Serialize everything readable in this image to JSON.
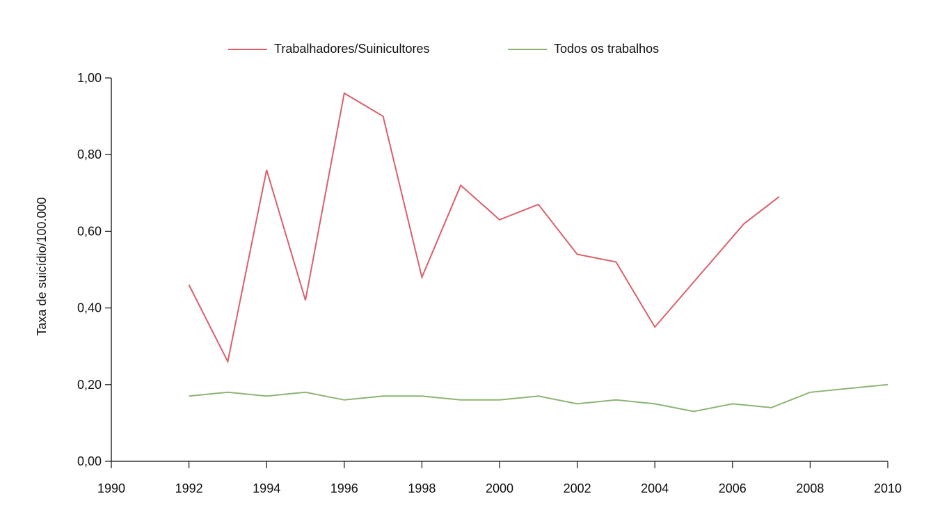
{
  "chart_data": {
    "type": "line",
    "title": "",
    "xlabel": "",
    "ylabel": "Taxa de suicídio/100.000",
    "xlim": [
      1990,
      2010
    ],
    "ylim": [
      0,
      1.0
    ],
    "x_ticks": [
      "1990",
      "1992",
      "1994",
      "1996",
      "1998",
      "2000",
      "2002",
      "2004",
      "2006",
      "2008",
      "2010"
    ],
    "y_ticks": [
      "0,00",
      "0,20",
      "0,40",
      "0,60",
      "0,80",
      "1,00"
    ],
    "grid": false,
    "legend_position": "top",
    "series": [
      {
        "name": "Trabalhadores/Suinicultores",
        "color": "#d9606b",
        "x": [
          1992,
          1993,
          1994,
          1995,
          1996,
          1997,
          1998,
          1999,
          2000,
          2001,
          2002,
          2003,
          2004,
          2006.3,
          2007.2
        ],
        "values": [
          0.46,
          0.26,
          0.76,
          0.42,
          0.96,
          0.9,
          0.48,
          0.72,
          0.63,
          0.67,
          0.54,
          0.52,
          0.35,
          0.62,
          0.69
        ]
      },
      {
        "name": "Todos os trabalhos",
        "color": "#8db474",
        "x": [
          1992,
          1993,
          1994,
          1995,
          1996,
          1997,
          1998,
          1999,
          2000,
          2001,
          2002,
          2003,
          2004,
          2005,
          2006,
          2007,
          2008,
          2009,
          2010
        ],
        "values": [
          0.17,
          0.18,
          0.17,
          0.18,
          0.16,
          0.17,
          0.17,
          0.16,
          0.16,
          0.17,
          0.15,
          0.16,
          0.15,
          0.13,
          0.15,
          0.14,
          0.18,
          0.19,
          0.2
        ]
      }
    ]
  }
}
